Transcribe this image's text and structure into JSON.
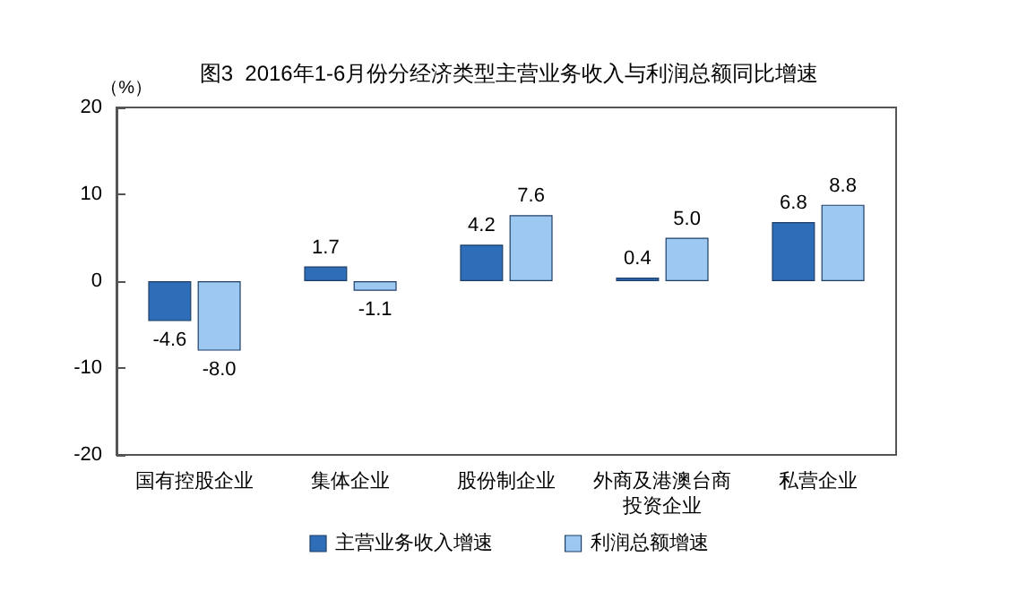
{
  "chart_data": {
    "type": "bar",
    "title": "图3  2016年1-6月份分经济类型主营业务收入与利润总额同比增速",
    "ylabel": "（%）",
    "categories": [
      "国有控股企业",
      "集体企业",
      "股份制企业",
      "外商及港澳台商投资企业",
      "私营企业"
    ],
    "series": [
      {
        "name": "主营业务收入增速",
        "color": "#2e6db8",
        "values": [
          -4.6,
          1.7,
          4.2,
          0.4,
          6.8
        ],
        "value_labels": [
          "-4.6",
          "1.7",
          "4.2",
          "0.4",
          "6.8"
        ]
      },
      {
        "name": "利润总额增速",
        "color": "#9cc8f2",
        "values": [
          -8.0,
          -1.1,
          7.6,
          5.0,
          8.8
        ],
        "value_labels": [
          "-8.0",
          "-1.1",
          "7.6",
          "5.0",
          "8.8"
        ]
      }
    ],
    "ylim": [
      -20,
      20
    ],
    "yticks": [
      -20,
      -10,
      0,
      10,
      20
    ],
    "grid": false,
    "legend": "bottom"
  }
}
